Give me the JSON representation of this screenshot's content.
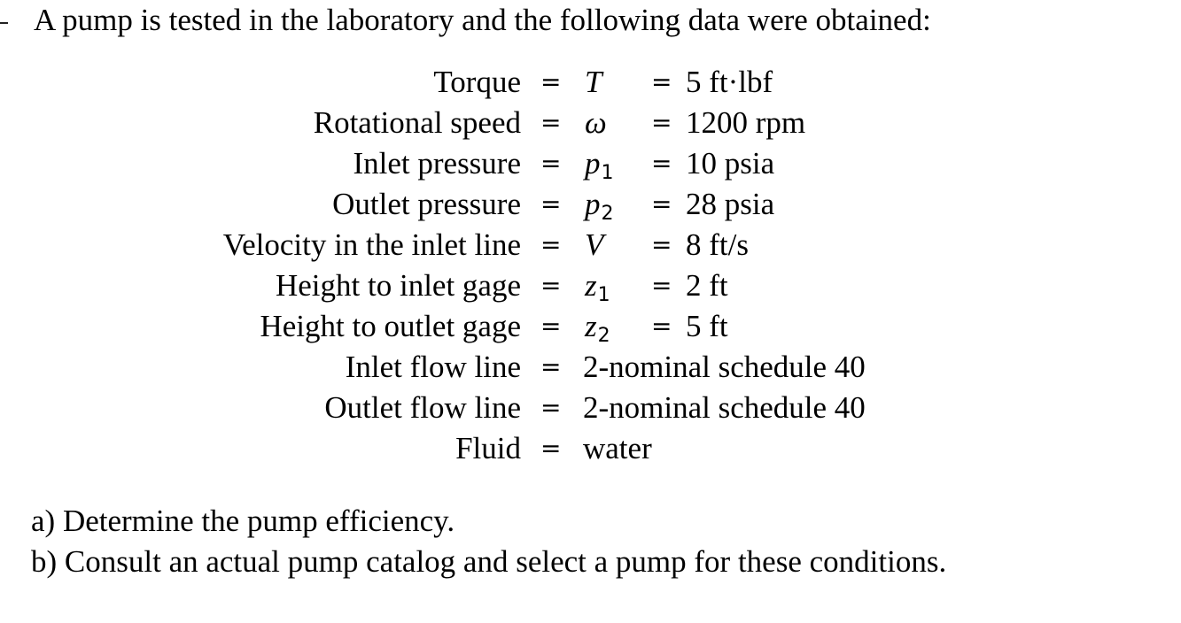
{
  "problem": {
    "intro": "A pump is tested in the laboratory and the following data were obtained:",
    "rows": [
      {
        "label": "Torque",
        "symbol": "T",
        "subscript": "",
        "value": "5 ft·lbf"
      },
      {
        "label": "Rotational speed",
        "symbol": "ω",
        "subscript": "",
        "value": "1200 rpm"
      },
      {
        "label": "Inlet pressure",
        "symbol": "p",
        "subscript": "1",
        "value": "10 psia"
      },
      {
        "label": "Outlet pressure",
        "symbol": "p",
        "subscript": "2",
        "value": "28 psia"
      },
      {
        "label": "Velocity in the inlet line",
        "symbol": "V",
        "subscript": "",
        "value": "8 ft/s"
      },
      {
        "label": "Height to inlet gage",
        "symbol": "z",
        "subscript": "1",
        "value": "2 ft"
      },
      {
        "label": "Height to outlet gage",
        "symbol": "z",
        "subscript": "2",
        "value": "5 ft"
      },
      {
        "label": "Inlet flow line",
        "value": "2-nominal schedule 40"
      },
      {
        "label": "Outlet flow line",
        "value": "2-nominal schedule 40"
      },
      {
        "label": "Fluid",
        "value": "water"
      }
    ],
    "equals_sign": "=",
    "task_a": "a) Determine the pump efficiency.",
    "task_b": "b) Consult an actual pump catalog and select a pump for these conditions."
  }
}
